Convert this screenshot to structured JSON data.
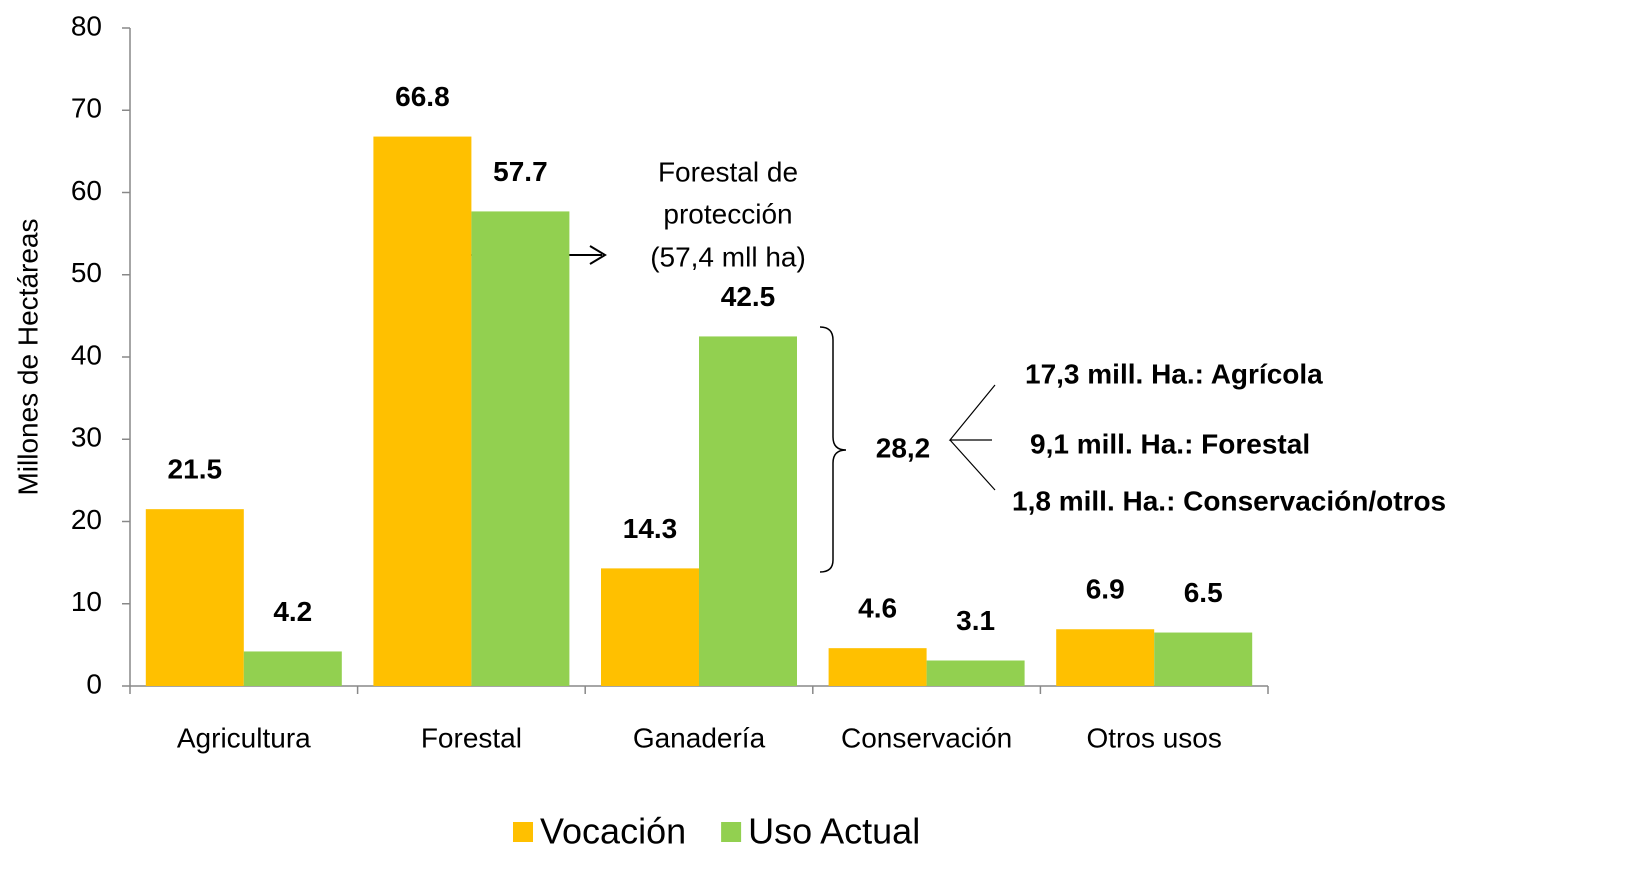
{
  "chart_data": {
    "type": "bar",
    "y_label": "Millones de Hectáreas",
    "categories": [
      "Agricultura",
      "Forestal",
      "Ganadería",
      "Conservación",
      "Otros usos"
    ],
    "series": [
      {
        "name": "Vocación",
        "color": "#FFC000",
        "values": [
          21.5,
          66.8,
          14.3,
          4.6,
          6.9
        ]
      },
      {
        "name": "Uso Actual",
        "color": "#92D050",
        "values": [
          4.2,
          57.7,
          42.5,
          3.1,
          6.5
        ]
      }
    ],
    "ylim": [
      0,
      80
    ],
    "yticks": [
      0,
      10,
      20,
      30,
      40,
      50,
      60,
      70,
      80
    ],
    "annotations": {
      "forestal": [
        "Forestal de",
        "protección",
        "(57,4 mll ha)"
      ],
      "total": "28,2",
      "breakdown": [
        "17,3 mill. Ha.: Agrícola",
        "9,1 mill. Ha.: Forestal",
        "1,8 mill. Ha.: Conservación/otros"
      ]
    },
    "legend": "bottom"
  }
}
